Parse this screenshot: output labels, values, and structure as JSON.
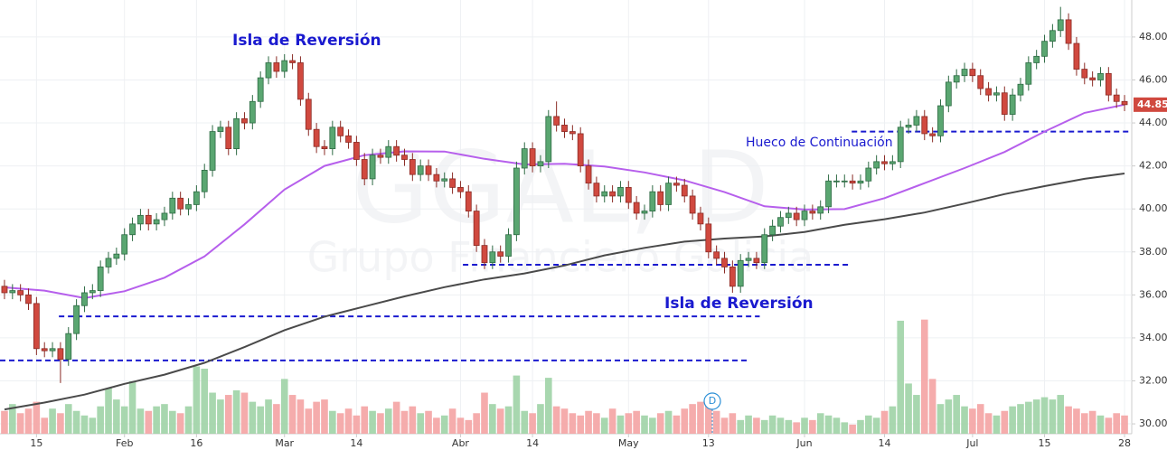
{
  "chart_data": {
    "type": "candlestick",
    "watermark": "GGAL, D",
    "watermark_subtitle": "Grupo Financiero Galicia",
    "ylim": [
      29.54,
      49.72
    ],
    "yticks": [
      {
        "value": 30,
        "label": "30.00"
      },
      {
        "value": 32,
        "label": "32.00"
      },
      {
        "value": 34,
        "label": "34.00"
      },
      {
        "value": 36,
        "label": "36.00"
      },
      {
        "value": 38,
        "label": "38.00"
      },
      {
        "value": 40,
        "label": "40.00"
      },
      {
        "value": 42,
        "label": "42.00"
      },
      {
        "value": 44,
        "label": "44.00"
      },
      {
        "value": 46,
        "label": "46.00"
      },
      {
        "value": 48,
        "label": "48.00"
      }
    ],
    "xlim": [
      -0.56,
      140.9
    ],
    "xticks": [
      {
        "value": 4,
        "label": "15"
      },
      {
        "value": 15,
        "label": "Feb"
      },
      {
        "value": 24,
        "label": "16"
      },
      {
        "value": 35,
        "label": "Mar"
      },
      {
        "value": 44,
        "label": "14"
      },
      {
        "value": 57,
        "label": "Abr"
      },
      {
        "value": 66,
        "label": "14"
      },
      {
        "value": 78,
        "label": "May"
      },
      {
        "value": 88,
        "label": "13"
      },
      {
        "value": 100,
        "label": "Jun"
      },
      {
        "value": 110,
        "label": "14"
      },
      {
        "value": 121,
        "label": "Jul"
      },
      {
        "value": 130,
        "label": "15"
      },
      {
        "value": 140,
        "label": "28"
      }
    ],
    "grid": true,
    "up_color": "#5aa671",
    "down_color": "#d0493f",
    "volume_up_color": "#9fd3a6",
    "volume_down_color": "#f4a3a3",
    "open": [
      36.4,
      36.1,
      36.2,
      36.0,
      35.6,
      33.5,
      33.4,
      33.5,
      33.0,
      34.2,
      35.5,
      36.1,
      36.2,
      37.3,
      37.7,
      37.9,
      38.8,
      39.3,
      39.7,
      39.3,
      39.5,
      39.8,
      40.5,
      40.0,
      40.2,
      40.8,
      41.8,
      43.6,
      43.8,
      42.8,
      44.2,
      44.0,
      45.0,
      46.1,
      46.8,
      46.4,
      46.9,
      46.8,
      45.1,
      43.7,
      42.9,
      42.8,
      43.8,
      43.4,
      43.1,
      42.3,
      41.4,
      42.5,
      42.4,
      42.9,
      42.5,
      42.3,
      41.6,
      42.0,
      41.6,
      41.3,
      41.4,
      41.0,
      40.8,
      39.9,
      38.3,
      37.5,
      38.0,
      37.8,
      38.8,
      41.9,
      42.8,
      42.0,
      42.2,
      44.3,
      43.9,
      43.6,
      43.5,
      42.0,
      41.2,
      40.6,
      40.8,
      40.6,
      41.0,
      40.3,
      39.8,
      39.9,
      40.8,
      40.2,
      41.2,
      41.1,
      40.6,
      39.8,
      39.3,
      38.0,
      37.7,
      37.3,
      36.4,
      37.6,
      37.7,
      37.5,
      38.8,
      39.2,
      39.6,
      39.8,
      39.5,
      39.9,
      39.8,
      40.1,
      41.3,
      41.3,
      41.3,
      41.2,
      41.3,
      41.9,
      42.2,
      42.1,
      42.2,
      43.8,
      43.9,
      44.3,
      43.5,
      43.4,
      44.8,
      45.9,
      46.2,
      46.5,
      46.2,
      45.6,
      45.3,
      45.4,
      44.4,
      45.3,
      45.8,
      46.8,
      47.1,
      47.8,
      48.3,
      48.8,
      47.7,
      46.5,
      46.1,
      46.0,
      46.3,
      45.3,
      45.0
    ],
    "high": [
      36.7,
      36.5,
      36.5,
      36.3,
      35.9,
      33.8,
      33.8,
      33.8,
      34.5,
      35.8,
      36.4,
      36.5,
      37.6,
      38.0,
      38.2,
      39.1,
      39.6,
      40.0,
      40.0,
      39.8,
      40.1,
      40.8,
      40.8,
      40.5,
      41.1,
      42.1,
      43.9,
      44.1,
      44.1,
      44.5,
      44.5,
      45.3,
      46.4,
      47.1,
      47.1,
      47.2,
      47.2,
      47.1,
      45.4,
      44.0,
      43.2,
      44.1,
      44.1,
      43.7,
      43.4,
      42.6,
      42.8,
      42.8,
      43.2,
      43.2,
      42.8,
      42.6,
      42.3,
      42.3,
      41.9,
      41.7,
      41.7,
      41.3,
      41.1,
      40.2,
      38.6,
      38.3,
      38.3,
      39.1,
      42.2,
      43.1,
      43.1,
      42.5,
      44.6,
      45.0,
      44.2,
      43.9,
      43.8,
      42.3,
      41.5,
      41.1,
      41.1,
      41.3,
      41.3,
      40.6,
      40.2,
      41.1,
      41.1,
      41.5,
      41.5,
      41.4,
      40.9,
      40.1,
      39.6,
      38.3,
      38.0,
      37.6,
      37.9,
      38.0,
      38.0,
      39.1,
      39.5,
      39.9,
      40.1,
      40.1,
      40.2,
      40.2,
      40.4,
      41.6,
      41.6,
      41.6,
      41.6,
      41.6,
      42.2,
      42.5,
      42.5,
      42.5,
      44.1,
      44.2,
      44.6,
      44.6,
      43.8,
      45.1,
      46.2,
      46.5,
      46.8,
      46.8,
      46.5,
      45.9,
      45.7,
      45.7,
      45.6,
      46.1,
      47.1,
      47.4,
      48.1,
      48.6,
      49.4,
      49.1,
      48.0,
      46.8,
      46.4,
      46.6,
      46.6,
      45.6,
      45.3
    ],
    "low": [
      35.8,
      35.8,
      35.7,
      35.3,
      33.2,
      33.1,
      33.1,
      31.9,
      32.7,
      33.9,
      35.2,
      35.8,
      35.9,
      37.0,
      37.4,
      37.6,
      38.5,
      39.0,
      39.0,
      39.0,
      39.2,
      39.5,
      39.7,
      39.7,
      39.9,
      40.5,
      41.5,
      43.3,
      42.5,
      42.5,
      43.7,
      43.7,
      44.7,
      45.8,
      46.1,
      46.1,
      46.5,
      44.8,
      43.4,
      42.6,
      42.5,
      42.5,
      43.1,
      42.8,
      42.0,
      41.1,
      41.1,
      42.1,
      42.1,
      42.2,
      42.0,
      41.3,
      41.3,
      41.3,
      41.0,
      41.0,
      40.7,
      40.5,
      39.6,
      38.0,
      37.2,
      37.2,
      37.5,
      37.5,
      38.5,
      41.6,
      41.7,
      41.7,
      41.9,
      43.6,
      43.3,
      43.2,
      41.7,
      40.9,
      40.3,
      40.3,
      40.3,
      40.3,
      40.0,
      39.5,
      39.5,
      39.6,
      39.9,
      39.9,
      40.8,
      40.3,
      39.5,
      39.0,
      37.7,
      37.4,
      37.0,
      36.1,
      36.1,
      37.3,
      37.2,
      37.2,
      38.5,
      38.9,
      39.3,
      39.2,
      39.2,
      39.5,
      39.5,
      39.8,
      41.0,
      41.0,
      40.9,
      40.9,
      41.0,
      41.6,
      41.8,
      41.8,
      41.9,
      43.5,
      43.6,
      43.2,
      43.1,
      43.1,
      44.5,
      45.6,
      45.9,
      45.9,
      45.3,
      45.0,
      45.0,
      44.1,
      44.1,
      45.0,
      45.5,
      46.5,
      46.8,
      47.5,
      48.0,
      47.4,
      46.2,
      45.8,
      45.7,
      45.7,
      45.0,
      44.7,
      44.55
    ],
    "close": [
      36.1,
      36.2,
      36.0,
      35.6,
      33.5,
      33.4,
      33.5,
      33.0,
      34.2,
      35.5,
      36.1,
      36.2,
      37.3,
      37.7,
      37.9,
      38.8,
      39.3,
      39.7,
      39.3,
      39.5,
      39.8,
      40.5,
      40.0,
      40.2,
      40.8,
      41.8,
      43.6,
      43.8,
      42.8,
      44.2,
      44.0,
      45.0,
      46.1,
      46.8,
      46.4,
      46.9,
      46.8,
      45.1,
      43.7,
      42.9,
      42.8,
      43.8,
      43.4,
      43.1,
      42.3,
      41.4,
      42.5,
      42.4,
      42.9,
      42.5,
      42.3,
      41.6,
      42.0,
      41.6,
      41.3,
      41.4,
      41.0,
      40.8,
      39.9,
      38.3,
      37.5,
      38.0,
      37.8,
      38.8,
      41.9,
      42.8,
      42.0,
      42.2,
      44.3,
      43.9,
      43.6,
      43.5,
      42.0,
      41.2,
      40.6,
      40.8,
      40.6,
      41.0,
      40.3,
      39.8,
      39.9,
      40.8,
      40.2,
      41.2,
      41.1,
      40.6,
      39.8,
      39.3,
      38.0,
      37.7,
      37.3,
      36.4,
      37.6,
      37.7,
      37.5,
      38.8,
      39.2,
      39.6,
      39.8,
      39.5,
      39.9,
      39.8,
      40.1,
      41.3,
      41.3,
      41.3,
      41.2,
      41.3,
      41.9,
      42.2,
      42.1,
      42.2,
      43.8,
      43.9,
      44.3,
      43.5,
      43.4,
      44.8,
      45.9,
      46.2,
      46.5,
      46.2,
      45.6,
      45.3,
      45.4,
      44.4,
      45.3,
      45.8,
      46.8,
      47.1,
      47.8,
      48.3,
      48.8,
      47.7,
      46.5,
      46.1,
      46.0,
      46.3,
      45.3,
      45.0,
      44.85
    ],
    "y2lim": [
      0,
      380
    ],
    "volume": [
      20,
      26,
      18,
      22,
      28,
      14,
      22,
      18,
      26,
      20,
      16,
      14,
      24,
      40,
      30,
      24,
      46,
      22,
      20,
      24,
      26,
      20,
      18,
      24,
      59,
      57,
      36,
      30,
      34,
      38,
      36,
      28,
      24,
      30,
      26,
      48,
      34,
      30,
      22,
      28,
      30,
      20,
      18,
      22,
      16,
      24,
      20,
      18,
      22,
      28,
      20,
      24,
      18,
      20,
      14,
      16,
      22,
      14,
      12,
      18,
      36,
      26,
      22,
      24,
      51,
      20,
      18,
      26,
      49,
      24,
      22,
      18,
      16,
      20,
      18,
      14,
      22,
      16,
      18,
      20,
      16,
      14,
      18,
      20,
      16,
      22,
      26,
      28,
      24,
      20,
      14,
      18,
      12,
      16,
      14,
      12,
      16,
      14,
      12,
      10,
      14,
      12,
      18,
      16,
      14,
      10,
      8,
      12,
      16,
      14,
      20,
      24,
      99,
      44,
      34,
      100,
      48,
      26,
      30,
      34,
      24,
      22,
      26,
      18,
      16,
      20,
      24,
      26,
      28,
      30,
      32,
      30,
      34,
      24,
      22,
      18,
      20,
      16,
      14,
      18,
      16
    ],
    "lines": [
      {
        "color": "#b65fec",
        "x": [
          0,
          5,
          10,
          15,
          20,
          25,
          30,
          35,
          40,
          45,
          50,
          55,
          60,
          65,
          70,
          75,
          80,
          85,
          90,
          95,
          100,
          105,
          110,
          115,
          120,
          125,
          130,
          135,
          140
        ],
        "values": [
          36.35,
          36.2,
          35.85,
          36.17,
          36.8,
          37.79,
          39.28,
          40.9,
          42.0,
          42.5,
          42.68,
          42.67,
          42.33,
          42.07,
          42.1,
          41.97,
          41.7,
          41.33,
          40.78,
          40.12,
          39.97,
          39.99,
          40.5,
          41.2,
          41.9,
          42.65,
          43.6,
          44.47,
          44.85
        ]
      },
      {
        "color": "#4a4a4a",
        "x": [
          0,
          5,
          10,
          15,
          20,
          25,
          30,
          35,
          40,
          45,
          50,
          55,
          60,
          65,
          70,
          75,
          80,
          85,
          90,
          95,
          100,
          105,
          110,
          115,
          120,
          125,
          130,
          135,
          140
        ],
        "values": [
          30.67,
          30.99,
          31.36,
          31.86,
          32.29,
          32.84,
          33.57,
          34.36,
          34.99,
          35.46,
          35.93,
          36.36,
          36.72,
          37.0,
          37.37,
          37.84,
          38.19,
          38.48,
          38.62,
          38.72,
          38.93,
          39.26,
          39.52,
          39.83,
          40.25,
          40.69,
          41.06,
          41.4,
          41.65
        ]
      }
    ],
    "levels": [
      {
        "value": 32.95,
        "from": -0.56,
        "to": 93.2
      },
      {
        "value": 35.0,
        "from": 6.8,
        "to": 94.4
      },
      {
        "value": 37.4,
        "from": 57.3,
        "to": 105.7
      },
      {
        "value": 43.6,
        "from": 105.9,
        "to": 140.9
      }
    ],
    "level_color": "#1a1acf",
    "annotations": [
      "Isla de Reversión",
      "Isla de Reversión",
      "Hueco de Continuación"
    ],
    "event_marker": "D",
    "last_price": {
      "value": 44.85,
      "label": "44.85"
    }
  }
}
